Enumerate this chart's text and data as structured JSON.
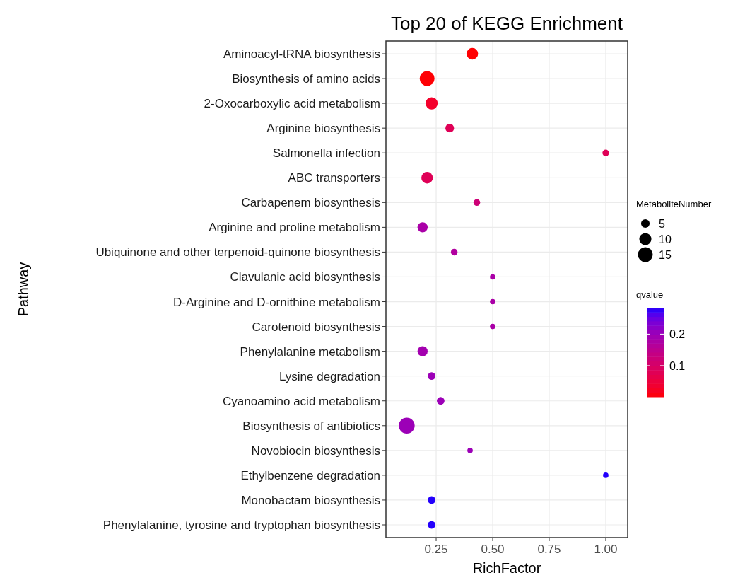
{
  "chart_data": {
    "type": "bubble",
    "orientation": "horizontal",
    "title": "Top 20 of KEGG Enrichment",
    "xlabel": "RichFactor",
    "ylabel": "Pathway",
    "legend_title": "MetaboliteNumber",
    "clabel": "qvalue",
    "grid": true,
    "categories": [
      "Aminoacyl-tRNA biosynthesis",
      "Biosynthesis of amino acids",
      "2-Oxocarboxylic acid metabolism",
      "Arginine biosynthesis",
      "Salmonella infection",
      "ABC transporters",
      "Carbapenem biosynthesis",
      "Arginine and proline metabolism",
      "Ubiquinone and other terpenoid-quinone biosynthesis",
      "Clavulanic acid biosynthesis",
      "D-Arginine and D-ornithine metabolism",
      "Carotenoid biosynthesis",
      "Phenylalanine metabolism",
      "Lysine degradation",
      "Cyanoamino acid metabolism",
      "Biosynthesis of antibiotics",
      "Novobiocin biosynthesis",
      "Ethylbenzene degradation",
      "Monobactam biosynthesis",
      "Phenylalanine, tyrosine and tryptophan biosynthesis"
    ],
    "values": [
      0.41,
      0.21,
      0.23,
      0.31,
      1.0,
      0.21,
      0.43,
      0.19,
      0.33,
      0.5,
      0.5,
      0.5,
      0.19,
      0.23,
      0.27,
      0.12,
      0.4,
      1.0,
      0.23,
      0.23
    ],
    "sizes": [
      9,
      15,
      10,
      5,
      3,
      9,
      3,
      7,
      3,
      2,
      2,
      2,
      7,
      4,
      4,
      17,
      2,
      2,
      4,
      4
    ],
    "size_legend": [
      5,
      10,
      15
    ],
    "cvalues": [
      0.002,
      0.003,
      0.03,
      0.08,
      0.08,
      0.08,
      0.12,
      0.18,
      0.17,
      0.18,
      0.18,
      0.18,
      0.19,
      0.2,
      0.2,
      0.2,
      0.2,
      0.28,
      0.28,
      0.28
    ],
    "clim": [
      0.001,
      0.284
    ],
    "cticks": [
      0.1,
      0.2
    ],
    "xlim": [
      0.028,
      1.097
    ],
    "xticks": [
      0.25,
      {
        "value": 0.5,
        "label": "0.50"
      },
      0.75,
      {
        "value": 1,
        "label": "1.00"
      }
    ]
  }
}
